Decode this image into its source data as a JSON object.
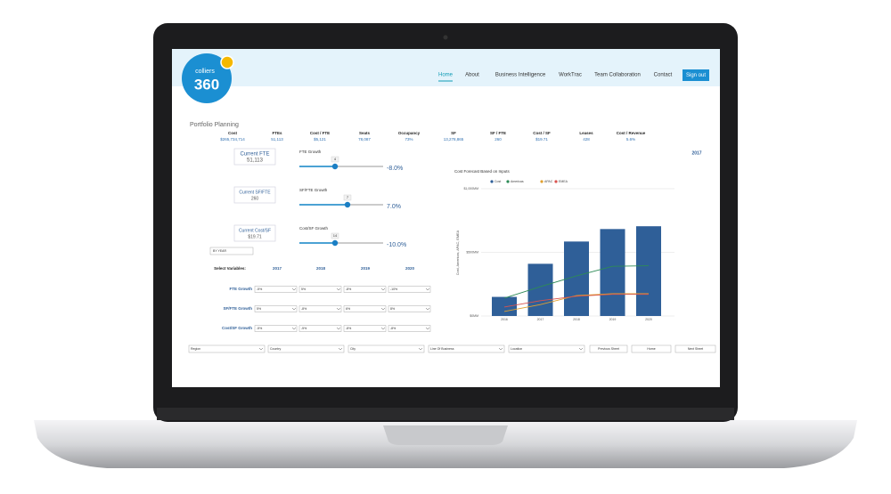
{
  "header": {
    "logo": {
      "brand": "colliers",
      "number": "360"
    },
    "nav": [
      "Home",
      "About",
      "Business Intelligence",
      "WorkTrac",
      "Team Collaboration",
      "Contact"
    ],
    "sign_out": "Sign out"
  },
  "page_title": "Portfolio Planning",
  "metrics": [
    {
      "label": "Cost",
      "value": "$265,734,714"
    },
    {
      "label": "FTEs",
      "value": "51,113"
    },
    {
      "label": "Cost / FTE",
      "value": "$5,121"
    },
    {
      "label": "Seats",
      "value": "78,087"
    },
    {
      "label": "Occupancy",
      "value": "73%"
    },
    {
      "label": "SF",
      "value": "13,278,865"
    },
    {
      "label": "SF / FTE",
      "value": "260"
    },
    {
      "label": "Cost / SF",
      "value": "$19.71"
    },
    {
      "label": "Leases",
      "value": "428"
    },
    {
      "label": "Cost / Revenue",
      "value": "5.6%"
    }
  ],
  "year": "2017",
  "scenarios": [
    {
      "current_label": "Current FTE",
      "current_value": "51,113",
      "growth_label": "FTE Growth",
      "slider_value": "4",
      "result": "-8.0%"
    },
    {
      "current_label": "Current SF/FTE",
      "current_value": "260",
      "growth_label": "SF/FTE Growth",
      "slider_value": "7",
      "result": "7.0%"
    },
    {
      "current_label": "Current Cost/SF",
      "current_value": "$19.71",
      "growth_label": "Cost/SF Growth",
      "slider_value": "14",
      "result": "-10.0%"
    }
  ],
  "period_select": "BY YEAR",
  "variables": {
    "label": "Select Variables:",
    "years": [
      "2017",
      "2018",
      "2019",
      "2020"
    ],
    "rows": [
      {
        "label": "FTE Growth",
        "options": [
          "-5%",
          "5%",
          "-8%",
          "-10%"
        ]
      },
      {
        "label": "SF/FTE Growth",
        "options": [
          "5%",
          "-8%",
          "6%",
          "8%"
        ]
      },
      {
        "label": "Cost/SF Growth",
        "options": [
          "-5%",
          "-5%",
          "-8%",
          "-8%"
        ]
      }
    ]
  },
  "filters": [
    "Region",
    "Country",
    "City",
    "Line Of Business",
    "Location"
  ],
  "buttons": [
    "Previous Sheet",
    "Home",
    "Next Sheet"
  ],
  "chart_data": {
    "type": "bar",
    "title": "Cost Forecast Based on Inputs",
    "y_label": "Cost, Americas, APAC, EMEA",
    "categories": [
      "2016",
      "2017",
      "2018",
      "2019",
      "2020"
    ],
    "ylim": [
      0,
      1000
    ],
    "yticks": [
      {
        "value": 0,
        "label": "$0MM"
      },
      {
        "value": 500,
        "label": "$500MM"
      },
      {
        "value": 1000,
        "label": "$1,000MM"
      }
    ],
    "grid": true,
    "series": [
      {
        "name": "Cost",
        "type": "bar",
        "color": "#2f5f98",
        "values": [
          150,
          410,
          585,
          683,
          705
        ]
      },
      {
        "name": "Americas",
        "type": "line",
        "color": "#2e8b57",
        "values": [
          140,
          230,
          315,
          390,
          395
        ]
      },
      {
        "name": "APAC",
        "type": "line",
        "color": "#e0a030",
        "values": [
          35,
          90,
          160,
          175,
          175
        ]
      },
      {
        "name": "EMEA",
        "type": "line",
        "color": "#d9534f",
        "values": [
          70,
          120,
          155,
          170,
          170
        ]
      }
    ]
  }
}
